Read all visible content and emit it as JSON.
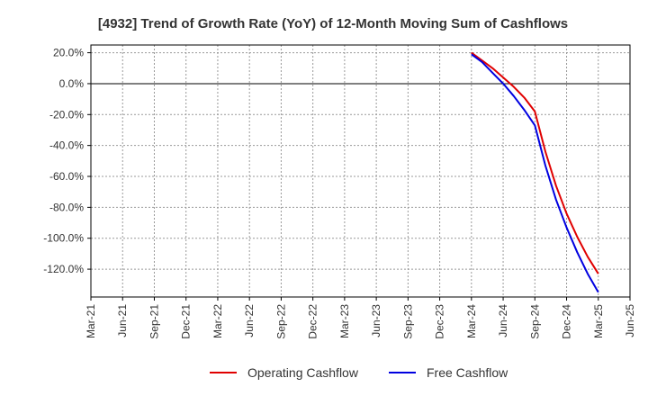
{
  "chart_data": {
    "type": "line",
    "title": "[4932]  Trend of Growth Rate (YoY) of 12-Month Moving Sum of Cashflows",
    "xlabel": "",
    "ylabel": "",
    "x_ticks": [
      "Mar-21",
      "Jun-21",
      "Sep-21",
      "Dec-21",
      "Mar-22",
      "Jun-22",
      "Sep-22",
      "Dec-22",
      "Mar-23",
      "Jun-23",
      "Sep-23",
      "Dec-23",
      "Mar-24",
      "Jun-24",
      "Sep-24",
      "Dec-24",
      "Mar-25",
      "Jun-25"
    ],
    "y_ticks": [
      "20.0%",
      "0.0%",
      "-20.0%",
      "-40.0%",
      "-60.0%",
      "-80.0%",
      "-100.0%",
      "-120.0%"
    ],
    "y_tick_values": [
      20,
      0,
      -20,
      -40,
      -60,
      -80,
      -100,
      -120
    ],
    "ylim": [
      -138,
      25
    ],
    "grid": true,
    "legend_position": "bottom",
    "series": [
      {
        "name": "Operating Cashflow",
        "color": "#e00000",
        "points": [
          {
            "x": "Mar-24",
            "y": 20
          },
          {
            "x": "Apr-24",
            "y": 15
          },
          {
            "x": "May-24",
            "y": 10
          },
          {
            "x": "Jun-24",
            "y": 4
          },
          {
            "x": "Jul-24",
            "y": -2
          },
          {
            "x": "Aug-24",
            "y": -9
          },
          {
            "x": "Sep-24",
            "y": -18
          },
          {
            "x": "Oct-24",
            "y": -44
          },
          {
            "x": "Nov-24",
            "y": -66
          },
          {
            "x": "Dec-24",
            "y": -84
          },
          {
            "x": "Jan-25",
            "y": -99
          },
          {
            "x": "Feb-25",
            "y": -112
          },
          {
            "x": "Mar-25",
            "y": -123
          }
        ]
      },
      {
        "name": "Free Cashflow",
        "color": "#0000e0",
        "points": [
          {
            "x": "Mar-24",
            "y": 19
          },
          {
            "x": "Apr-24",
            "y": 14
          },
          {
            "x": "May-24",
            "y": 7
          },
          {
            "x": "Jun-24",
            "y": 0
          },
          {
            "x": "Jul-24",
            "y": -8
          },
          {
            "x": "Aug-24",
            "y": -17
          },
          {
            "x": "Sep-24",
            "y": -27
          },
          {
            "x": "Oct-24",
            "y": -53
          },
          {
            "x": "Nov-24",
            "y": -75
          },
          {
            "x": "Dec-24",
            "y": -93
          },
          {
            "x": "Jan-25",
            "y": -109
          },
          {
            "x": "Feb-25",
            "y": -123
          },
          {
            "x": "Mar-25",
            "y": -135
          }
        ]
      }
    ]
  }
}
